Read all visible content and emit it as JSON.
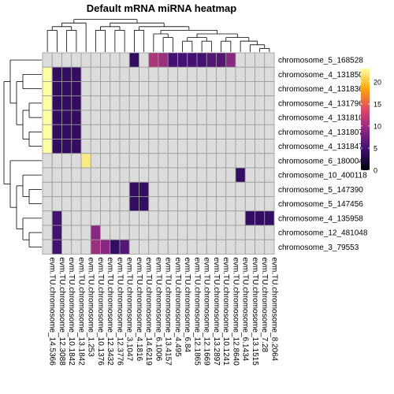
{
  "chart_data": {
    "type": "heatmap",
    "title": "Default mRNA miRNA heatmap",
    "xlabel": "",
    "ylabel": "",
    "columns": [
      "evm.TU.chromosome_14.5366",
      "evm.TU.chromosome_12.3088",
      "evm.TU.chromosome_10.1842",
      "evm.TU.chromosome_13.1842",
      "evm.TU.chromosome_1.253",
      "evm.TU.chromosome_10.1376",
      "evm.TU.chromosome_12.3432",
      "evm.TU.chromosome_12.3776",
      "evm.TU.chromosome_3.1047",
      "evm.TU.chromosome_4.1816",
      "evm.TU.chromosome_14.6219",
      "evm.TU.chromosome_6.1006",
      "evm.TU.chromosome_13.4157",
      "evm.TU.chromosome_4.495",
      "evm.TU.chromosome_6.84",
      "evm.TU.chromosome_12.1865",
      "evm.TU.chromosome_12.1669",
      "evm.TU.chromosome_13.2897",
      "evm.TU.chromosome_10.1241",
      "evm.TU.chromosome_12.8640",
      "evm.TU.chromosome_6.1434",
      "evm.TU.chromosome_13.1515",
      "evm.TU.chromosome_7.28",
      "evm.TU.chromosome_8.2064"
    ],
    "rows": [
      "chromosome_5_168528",
      "chromosome_4_131850",
      "chromosome_4_131836",
      "chromosome_4_131796",
      "chromosome_4_131810",
      "chromosome_4_131807",
      "chromosome_4_131847",
      "chromosome_6_180004",
      "chromosome_10_400118",
      "chromosome_5_147390",
      "chromosome_5_147456",
      "chromosome_4_135958",
      "chromosome_12_481048",
      "chromosome_3_79553"
    ],
    "values": [
      [
        0,
        0,
        0,
        0,
        0,
        0,
        0,
        0,
        0,
        4,
        0,
        11,
        10,
        5,
        5,
        5,
        5,
        6,
        6,
        9,
        0,
        0,
        0,
        0
      ],
      [
        23,
        4,
        4,
        4,
        0,
        0,
        0,
        0,
        0,
        0,
        0,
        0,
        0,
        0,
        0,
        0,
        0,
        0,
        0,
        0,
        0,
        0,
        0,
        0
      ],
      [
        23,
        4,
        4,
        4,
        0,
        0,
        0,
        0,
        0,
        0,
        0,
        0,
        0,
        0,
        0,
        0,
        0,
        0,
        0,
        0,
        0,
        0,
        0,
        0
      ],
      [
        23,
        4,
        4,
        4,
        0,
        0,
        0,
        0,
        0,
        0,
        0,
        0,
        0,
        0,
        0,
        0,
        0,
        0,
        0,
        0,
        0,
        0,
        0,
        0
      ],
      [
        23,
        4,
        4,
        4,
        0,
        0,
        0,
        0,
        0,
        0,
        0,
        0,
        0,
        0,
        0,
        0,
        0,
        0,
        0,
        0,
        0,
        0,
        0,
        0
      ],
      [
        23,
        4,
        4,
        4,
        0,
        0,
        0,
        0,
        0,
        0,
        0,
        0,
        0,
        0,
        0,
        0,
        0,
        0,
        0,
        0,
        0,
        0,
        0,
        0
      ],
      [
        23,
        4,
        4,
        4,
        0,
        0,
        0,
        0,
        0,
        0,
        0,
        0,
        0,
        0,
        0,
        0,
        0,
        0,
        0,
        0,
        0,
        0,
        0,
        0
      ],
      [
        0,
        0,
        0,
        0,
        22,
        0,
        0,
        0,
        0,
        0,
        0,
        0,
        0,
        0,
        0,
        0,
        0,
        0,
        0,
        0,
        0,
        0,
        0,
        0
      ],
      [
        0,
        0,
        0,
        0,
        0,
        0,
        0,
        0,
        0,
        0,
        0,
        0,
        0,
        0,
        0,
        0,
        0,
        0,
        0,
        0,
        4,
        0,
        0,
        0
      ],
      [
        0,
        0,
        0,
        0,
        0,
        0,
        0,
        0,
        0,
        4,
        4,
        0,
        0,
        0,
        0,
        0,
        0,
        0,
        0,
        0,
        0,
        0,
        0,
        0
      ],
      [
        0,
        0,
        0,
        0,
        0,
        0,
        0,
        0,
        0,
        4,
        4,
        0,
        0,
        0,
        0,
        0,
        0,
        0,
        0,
        0,
        0,
        0,
        0,
        0
      ],
      [
        0,
        5,
        0,
        0,
        0,
        0,
        0,
        0,
        0,
        0,
        0,
        0,
        0,
        0,
        0,
        0,
        0,
        0,
        0,
        0,
        0,
        4,
        4,
        4
      ],
      [
        0,
        5,
        0,
        0,
        0,
        9,
        0,
        0,
        0,
        0,
        0,
        0,
        0,
        0,
        0,
        0,
        0,
        0,
        0,
        0,
        0,
        0,
        0,
        0
      ],
      [
        0,
        5,
        0,
        0,
        0,
        10,
        9,
        4,
        6,
        0,
        0,
        0,
        0,
        0,
        0,
        0,
        0,
        0,
        0,
        0,
        0,
        0,
        0,
        0
      ]
    ],
    "zero_color": "#dcdcdc",
    "color_scale": {
      "min": 0,
      "max": 23,
      "ticks": [
        0,
        5,
        10,
        15,
        20
      ],
      "stops": [
        "#000004",
        "#3b0f70",
        "#8c2981",
        "#dd4a68",
        "#fca50a",
        "#fcffa4"
      ]
    },
    "legend": "right",
    "grid": true,
    "row_dendrogram": "left",
    "column_dendrogram": "top"
  }
}
